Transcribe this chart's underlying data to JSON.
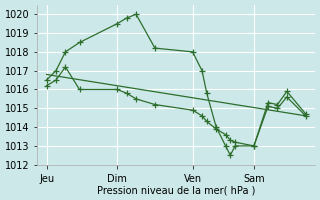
{
  "xlabel": "Pression niveau de la mer( hPa )",
  "background_color": "#cce8e8",
  "grid_color": "#ffffff",
  "line_color": "#2d6e2d",
  "vline_color": "#8888aa",
  "ylim_min": 1012,
  "ylim_max": 1020.5,
  "xlim_min": -0.5,
  "xlim_max": 29.0,
  "day_labels": [
    "Jeu",
    "Dim",
    "Ven",
    "Sam"
  ],
  "day_positions": [
    0.5,
    8,
    16,
    22.5
  ],
  "vline_positions": [
    0.5,
    8,
    16,
    22.5
  ],
  "line1_x": [
    0.5,
    1.5,
    2.5,
    4.0,
    8.0,
    9.0,
    10.0,
    12.0,
    16.0,
    17.0,
    17.5,
    18.5,
    19.5,
    20.0,
    20.5,
    22.5,
    24.0,
    25.0,
    26.0,
    28.0
  ],
  "line1_y": [
    1016.5,
    1017.0,
    1018.0,
    1018.5,
    1019.5,
    1019.8,
    1020.0,
    1018.2,
    1018.0,
    1017.0,
    1015.8,
    1014.0,
    1013.0,
    1012.5,
    1013.0,
    1013.0,
    1015.3,
    1015.2,
    1015.9,
    1014.7
  ],
  "line2_x": [
    0.5,
    28.0
  ],
  "line2_y": [
    1016.8,
    1014.6
  ],
  "line3_x": [
    0.5,
    1.5,
    2.5,
    4.0,
    8.0,
    9.0,
    10.0,
    12.0,
    16.0,
    17.0,
    17.5,
    18.5,
    19.5,
    20.0,
    20.5,
    22.5,
    24.0,
    25.0,
    26.0,
    28.0
  ],
  "line3_y": [
    1016.2,
    1016.5,
    1017.2,
    1016.0,
    1016.0,
    1015.8,
    1015.5,
    1015.2,
    1014.9,
    1014.6,
    1014.3,
    1013.9,
    1013.6,
    1013.3,
    1013.2,
    1013.0,
    1015.1,
    1015.0,
    1015.6,
    1014.6
  ],
  "xlabel_fontsize": 7,
  "tick_fontsize": 7
}
